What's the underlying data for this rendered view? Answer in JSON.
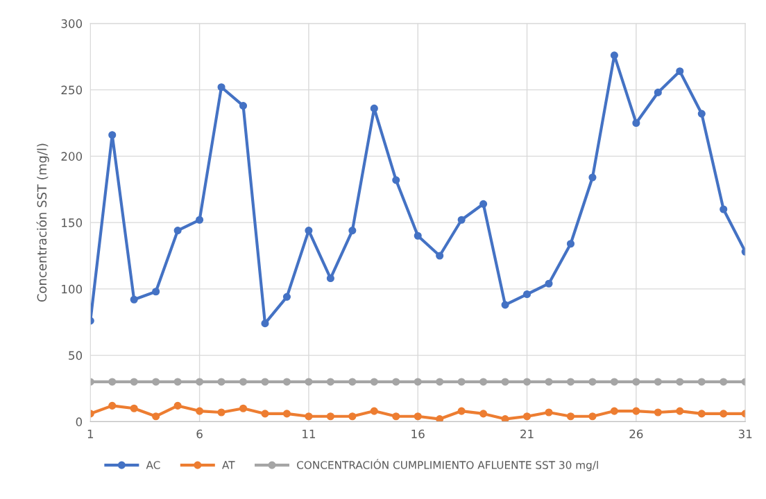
{
  "chart_data": {
    "type": "line",
    "ylabel": "Concentración SST (mg/l)",
    "x": [
      1,
      2,
      3,
      4,
      5,
      6,
      7,
      8,
      9,
      10,
      11,
      12,
      13,
      14,
      15,
      16,
      17,
      18,
      19,
      20,
      21,
      22,
      23,
      24,
      25,
      26,
      27,
      28,
      29,
      30,
      31
    ],
    "series": [
      {
        "name": "AC",
        "color": "#4472c4",
        "values": [
          76,
          216,
          92,
          98,
          144,
          152,
          252,
          238,
          74,
          94,
          144,
          108,
          144,
          236,
          182,
          140,
          125,
          152,
          164,
          88,
          96,
          104,
          134,
          184,
          276,
          225,
          248,
          264,
          232,
          160,
          128
        ]
      },
      {
        "name": "AT",
        "color": "#ed7d31",
        "values": [
          6,
          12,
          10,
          4,
          12,
          8,
          7,
          10,
          6,
          6,
          4,
          4,
          4,
          8,
          4,
          4,
          2,
          8,
          6,
          2,
          4,
          7,
          4,
          4,
          8,
          8,
          7,
          8,
          6,
          6,
          6
        ]
      },
      {
        "name": "CONCENTRACIÓN CUMPLIMIENTO AFLUENTE SST 30 mg/l",
        "color": "#a5a5a5",
        "values": [
          30,
          30,
          30,
          30,
          30,
          30,
          30,
          30,
          30,
          30,
          30,
          30,
          30,
          30,
          30,
          30,
          30,
          30,
          30,
          30,
          30,
          30,
          30,
          30,
          30,
          30,
          30,
          30,
          30,
          30,
          30
        ]
      }
    ],
    "xlim": [
      1,
      31
    ],
    "xticks": [
      1,
      6,
      11,
      16,
      21,
      26,
      31
    ],
    "ylim": [
      0,
      300
    ],
    "yticks": [
      0,
      50,
      100,
      150,
      200,
      250,
      300
    ],
    "grid": true,
    "legend": "bottom",
    "marker": "circle",
    "line_style": "solid"
  }
}
